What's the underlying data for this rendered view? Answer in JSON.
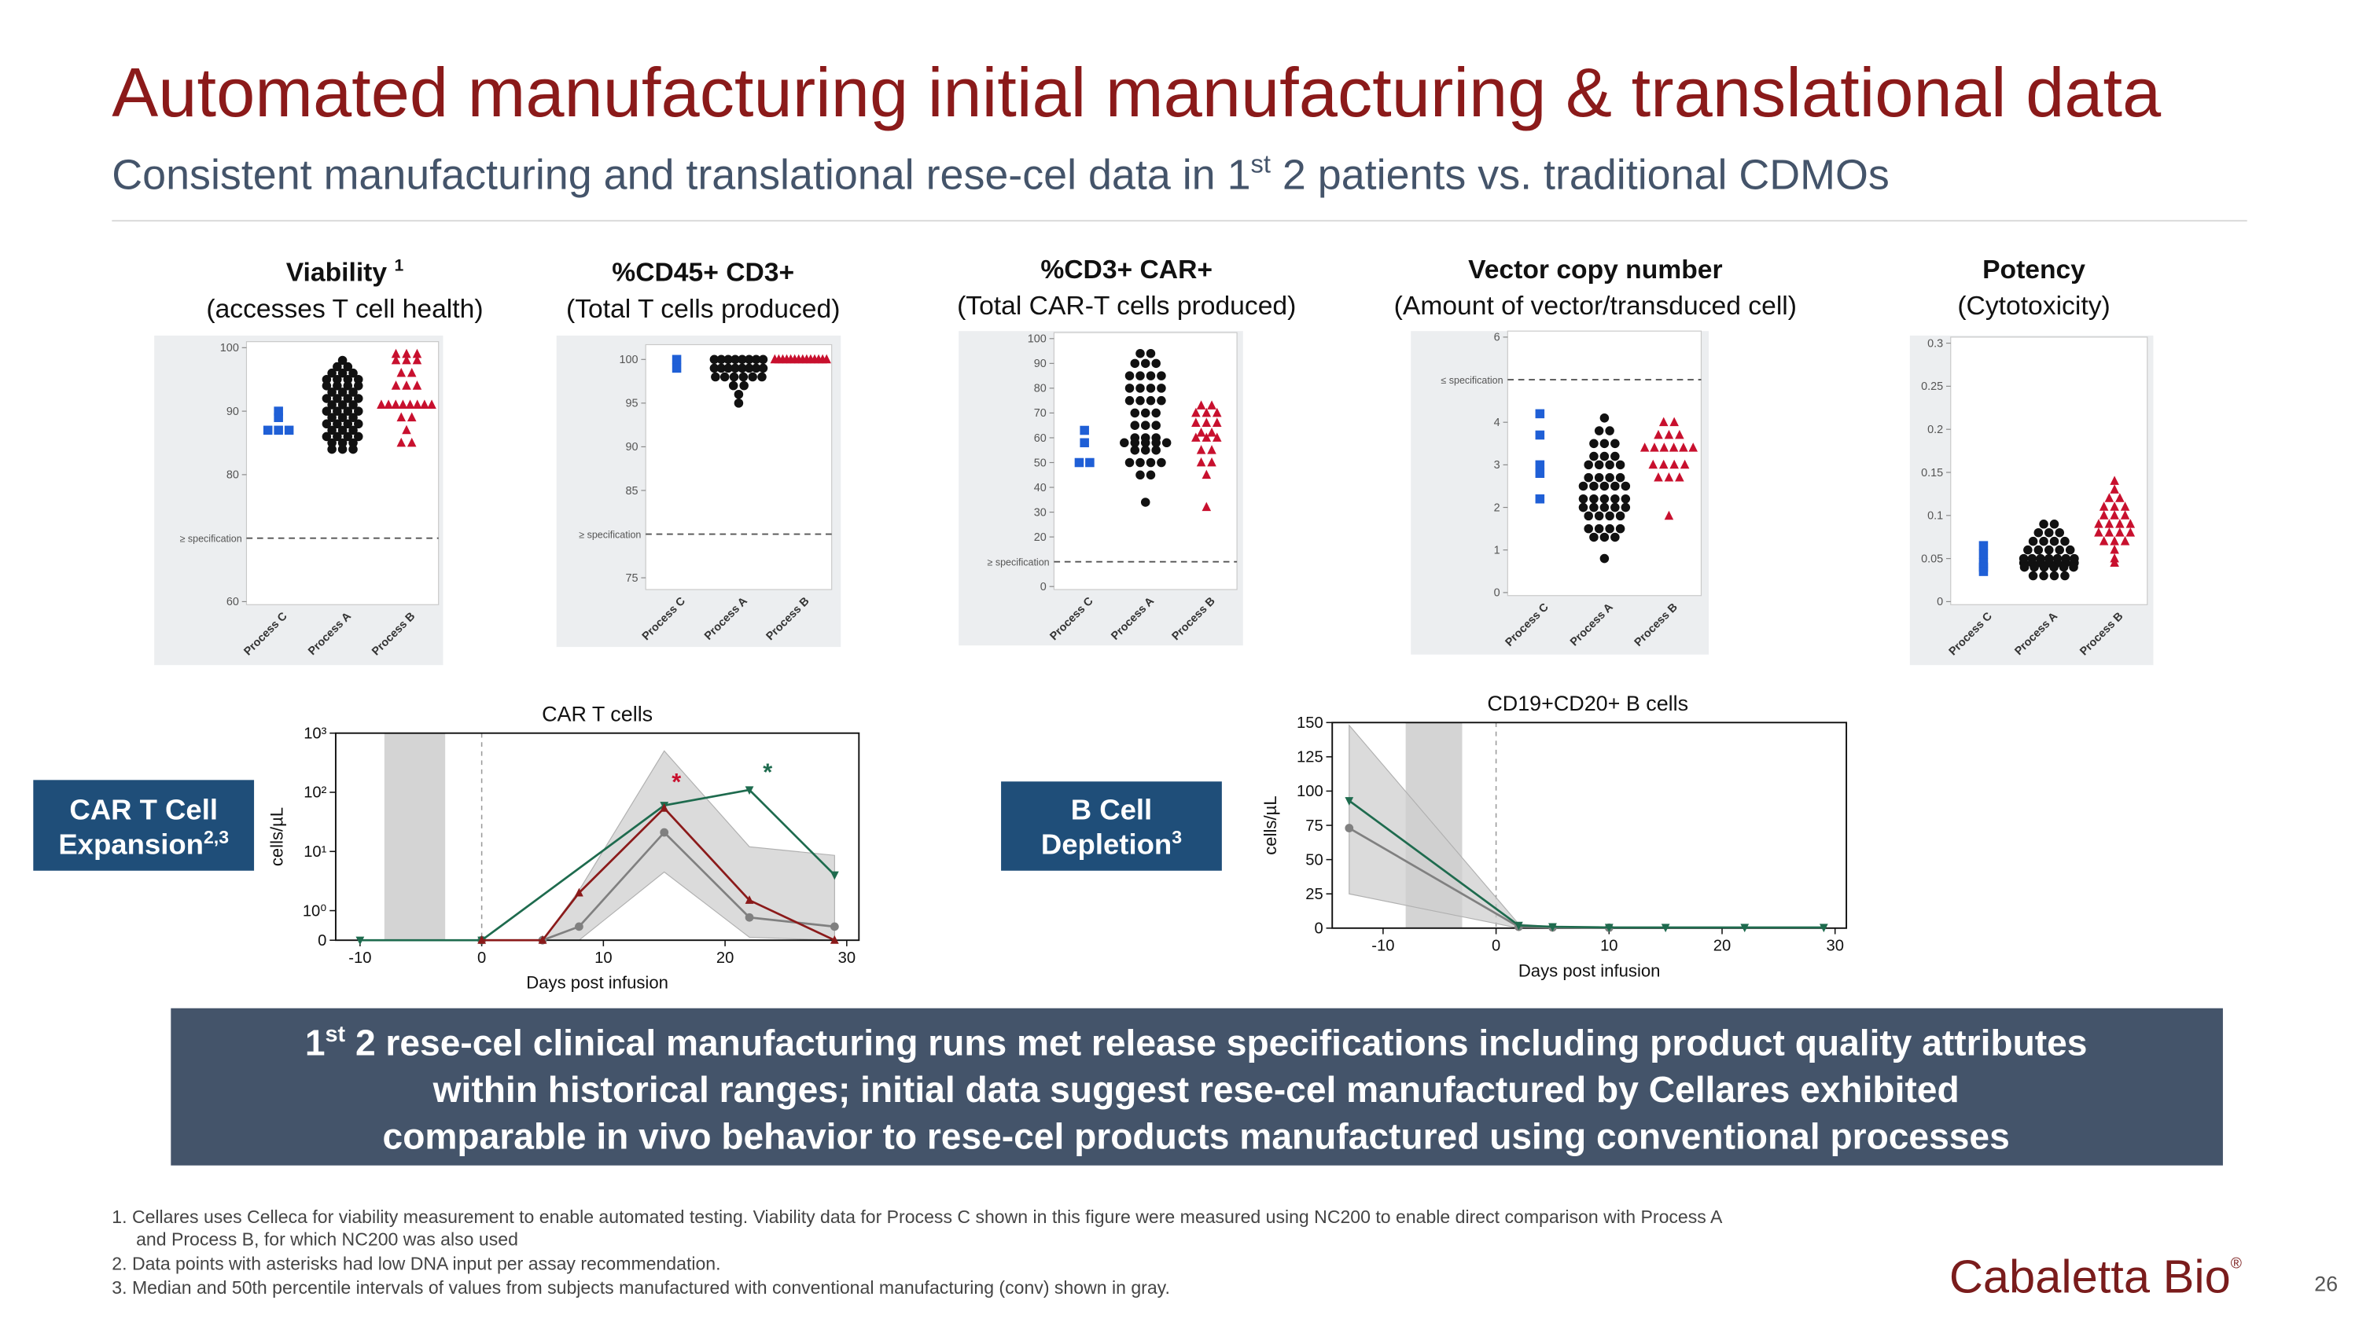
{
  "header": {
    "title": "Automated manufacturing initial manufacturing & translational data",
    "subtitle": [
      "Consistent manufacturing and translational rese-cel data in 1",
      "st",
      " 2 patients vs. traditional CDMOs"
    ]
  },
  "chart_data": [
    {
      "type": "dot",
      "title": "Viability",
      "title_sup": "1",
      "subtitle": "(accesses T cell health)",
      "categories": [
        "Process C",
        "Process A",
        "Process B"
      ],
      "colors": [
        "#1f5fd6",
        "#111111",
        "#c8102e"
      ],
      "markers": [
        "square",
        "circle",
        "triangle"
      ],
      "points": [
        [
          90,
          89,
          87,
          87,
          87
        ],
        [
          98,
          97,
          97,
          96,
          96,
          96,
          95,
          95,
          95,
          95,
          94,
          94,
          94,
          94,
          93,
          93,
          93,
          92,
          92,
          92,
          92,
          91,
          91,
          91,
          90,
          90,
          90,
          90,
          89,
          89,
          89,
          88,
          88,
          88,
          88,
          87,
          87,
          87,
          86,
          86,
          86,
          86,
          85,
          85,
          85,
          84,
          84,
          84
        ],
        [
          99,
          99,
          99,
          98,
          98,
          98,
          96,
          96,
          94,
          94,
          94,
          91,
          91,
          91,
          91,
          91,
          91,
          91,
          91,
          89,
          89,
          87,
          85,
          85
        ]
      ],
      "ylim": [
        60,
        100
      ],
      "yticks": [
        60,
        80,
        90,
        100
      ],
      "spec": {
        "value": 70,
        "label": "≥ specification"
      }
    },
    {
      "type": "dot",
      "title": "%CD45+ CD3+",
      "subtitle": "(Total T cells produced)",
      "categories": [
        "Process C",
        "Process A",
        "Process B"
      ],
      "colors": [
        "#1f5fd6",
        "#111111",
        "#c8102e"
      ],
      "markers": [
        "square",
        "circle",
        "triangle"
      ],
      "points": [
        [
          100,
          99
        ],
        [
          100,
          100,
          100,
          100,
          100,
          100,
          100,
          100,
          99,
          99,
          99,
          99,
          99,
          99,
          99,
          99,
          98,
          98,
          98,
          98,
          98,
          98,
          97,
          97,
          96,
          95
        ],
        [
          100,
          100,
          100,
          100,
          100,
          100,
          100,
          100,
          100,
          100,
          100,
          100,
          100,
          100
        ]
      ],
      "ylim": [
        74,
        101
      ],
      "yticks": [
        75,
        85,
        90,
        95,
        100
      ],
      "spec": {
        "value": 80,
        "label": "≥ specification"
      }
    },
    {
      "type": "dot",
      "title": "%CD3+ CAR+",
      "subtitle": "(Total CAR-T cells produced)",
      "categories": [
        "Process C",
        "Process A",
        "Process B"
      ],
      "colors": [
        "#1f5fd6",
        "#111111",
        "#c8102e"
      ],
      "markers": [
        "square",
        "circle",
        "triangle"
      ],
      "points": [
        [
          63,
          58,
          50,
          50
        ],
        [
          94,
          94,
          90,
          90,
          90,
          85,
          85,
          85,
          85,
          80,
          80,
          80,
          80,
          75,
          75,
          75,
          75,
          70,
          70,
          70,
          65,
          65,
          65,
          60,
          60,
          60,
          58,
          58,
          58,
          58,
          58,
          55,
          55,
          55,
          50,
          50,
          50,
          50,
          45,
          45,
          34
        ],
        [
          73,
          73,
          70,
          70,
          70,
          66,
          66,
          66,
          62,
          62,
          60,
          60,
          60,
          55,
          55,
          50,
          50,
          45,
          32
        ]
      ],
      "ylim": [
        0,
        100
      ],
      "yticks": [
        0,
        20,
        30,
        40,
        50,
        60,
        70,
        80,
        90,
        100
      ],
      "spec": {
        "value": 10,
        "label": "≥ specification"
      }
    },
    {
      "type": "dot",
      "title": "Vector copy number",
      "subtitle": "(Amount of vector/transduced cell)",
      "categories": [
        "Process C",
        "Process A",
        "Process B"
      ],
      "colors": [
        "#1f5fd6",
        "#111111",
        "#c8102e"
      ],
      "markers": [
        "square",
        "circle",
        "triangle"
      ],
      "points": [
        [
          4.2,
          3.7,
          3.0,
          2.8,
          2.2
        ],
        [
          4.1,
          3.8,
          3.8,
          3.5,
          3.5,
          3.5,
          3.2,
          3.2,
          3.2,
          3.0,
          3.0,
          3.0,
          3.0,
          2.7,
          2.7,
          2.7,
          2.7,
          2.5,
          2.5,
          2.5,
          2.5,
          2.5,
          2.2,
          2.2,
          2.2,
          2.2,
          2.2,
          2.0,
          2.0,
          2.0,
          2.0,
          2.0,
          1.8,
          1.8,
          1.8,
          1.8,
          1.5,
          1.5,
          1.5,
          1.5,
          1.3,
          1.3,
          1.3,
          0.8
        ],
        [
          4.0,
          4.0,
          3.7,
          3.7,
          3.7,
          3.4,
          3.4,
          3.4,
          3.4,
          3.4,
          3.4,
          3.0,
          3.0,
          3.0,
          3.0,
          2.7,
          2.7,
          2.7,
          1.8
        ]
      ],
      "ylim": [
        0,
        6
      ],
      "yticks": [
        0,
        1,
        2,
        3,
        4,
        6
      ],
      "spec": {
        "value": 5,
        "label": "≤ specification"
      }
    },
    {
      "type": "dot",
      "title": "Potency",
      "subtitle": "(Cytotoxicity)",
      "categories": [
        "Process C",
        "Process A",
        "Process B"
      ],
      "colors": [
        "#1f5fd6",
        "#111111",
        "#c8102e"
      ],
      "markers": [
        "square",
        "circle",
        "triangle"
      ],
      "points": [
        [
          0.065,
          0.055,
          0.045,
          0.04,
          0.035
        ],
        [
          0.09,
          0.09,
          0.08,
          0.08,
          0.08,
          0.07,
          0.07,
          0.07,
          0.07,
          0.06,
          0.06,
          0.06,
          0.06,
          0.06,
          0.05,
          0.05,
          0.05,
          0.05,
          0.05,
          0.05,
          0.05,
          0.045,
          0.045,
          0.045,
          0.045,
          0.045,
          0.045,
          0.045,
          0.04,
          0.04,
          0.04,
          0.04,
          0.04,
          0.04,
          0.03,
          0.03,
          0.03,
          0.03
        ],
        [
          0.14,
          0.13,
          0.12,
          0.12,
          0.11,
          0.11,
          0.11,
          0.1,
          0.1,
          0.1,
          0.09,
          0.09,
          0.09,
          0.09,
          0.08,
          0.08,
          0.08,
          0.08,
          0.07,
          0.07,
          0.07,
          0.06,
          0.05,
          0.045
        ]
      ],
      "ylim": [
        0,
        0.3
      ],
      "yticks": [
        0,
        0.05,
        0.1,
        0.15,
        0.2,
        0.25,
        0.3
      ]
    },
    {
      "type": "line",
      "title": "CAR T cells",
      "xlabel": "Days post infusion",
      "ylabel": "cells/µL",
      "yscale": "symlog",
      "xlim": [
        -12,
        31
      ],
      "xticks": [
        -10,
        0,
        10,
        20,
        30
      ],
      "ylim": [
        0,
        1000
      ],
      "yticks": [
        0,
        {
          "value": 1,
          "label": "10⁰"
        },
        {
          "value": 10,
          "label": "10¹"
        },
        {
          "value": 100,
          "label": "10²"
        },
        {
          "value": 1000,
          "label": "10³"
        }
      ],
      "shaded_x": [
        -8,
        -3
      ],
      "reference_x": 0,
      "band": {
        "color": "#cfcfcf",
        "x": [
          5,
          8,
          15,
          22,
          29
        ],
        "lower": [
          0,
          0,
          4.5,
          0.1,
          0
        ],
        "upper": [
          0,
          2.2,
          500,
          12,
          8.6
        ]
      },
      "series": [
        {
          "color": "#808080",
          "marker": "circle",
          "x": [
            0,
            5,
            8,
            15,
            22,
            29
          ],
          "values": [
            0,
            0,
            0.46,
            21,
            0.77,
            0.46
          ]
        },
        {
          "color": "#1e6b4e",
          "marker": "triangle-down",
          "x": [
            -10,
            0,
            15,
            22,
            29
          ],
          "values": [
            0,
            0,
            60,
            110,
            4
          ]
        },
        {
          "color": "#8b1a1a",
          "marker": "triangle",
          "x": [
            0,
            5,
            8,
            15,
            22,
            29
          ],
          "values": [
            0,
            0,
            2,
            54,
            1.5,
            0
          ]
        }
      ],
      "annotations": [
        {
          "text": "*",
          "x": 16,
          "y": 110,
          "color": "#c8102e"
        },
        {
          "text": "*",
          "x": 23.5,
          "y": 160,
          "color": "#1e6b4e"
        }
      ]
    },
    {
      "type": "line",
      "title": "CD19+CD20+ B cells",
      "xlabel": "Days post infusion",
      "ylabel": "cells/µL",
      "xlim": [
        -14.5,
        31
      ],
      "xticks": [
        -10,
        0,
        10,
        20,
        30
      ],
      "ylim": [
        0,
        150
      ],
      "yticks": [
        0,
        25,
        50,
        75,
        100,
        125,
        150
      ],
      "shaded_x": [
        -8,
        -3
      ],
      "reference_x": 0,
      "band": {
        "color": "#cfcfcf",
        "x": [
          -13,
          2,
          5,
          30
        ],
        "lower": [
          25,
          0,
          0,
          0
        ],
        "upper": [
          148,
          3,
          1,
          0
        ]
      },
      "series": [
        {
          "color": "#808080",
          "marker": "circle",
          "x": [
            -13,
            2,
            5,
            10
          ],
          "values": [
            73,
            1,
            0.5,
            0.3
          ]
        },
        {
          "color": "#1e6b4e",
          "marker": "triangle-down",
          "x": [
            -13,
            2,
            5,
            10,
            15,
            22,
            29
          ],
          "values": [
            93,
            2,
            1,
            0.5,
            0.5,
            0.5,
            0.5
          ]
        }
      ]
    }
  ],
  "labels": {
    "car_t": [
      "CAR T Cell",
      "Expansion",
      "2,3"
    ],
    "b_cell": [
      "B Cell",
      "Depletion",
      "3"
    ]
  },
  "callout": [
    "1",
    "st",
    " 2 rese-cel clinical manufacturing runs met release specifications including product quality attributes",
    "within historical ranges; initial data suggest rese-cel manufactured by Cellares exhibited",
    "comparable in vivo behavior to rese‑cel products manufactured using conventional processes"
  ],
  "footnotes": [
    "1. Cellares uses Celleca for viability measurement to enable automated testing. Viability data for Process C shown in this figure were measured using NC200 to enable direct comparison with Process A",
    "and Process B, for which NC200 was also used",
    "2. Data points with asterisks had low DNA input per assay recommendation.",
    "3. Median and 50th percentile intervals of values from subjects manufactured with conventional manufacturing (conv) shown in gray."
  ],
  "logo": [
    "Cabaletta Bio",
    "®"
  ],
  "page_number": "26"
}
